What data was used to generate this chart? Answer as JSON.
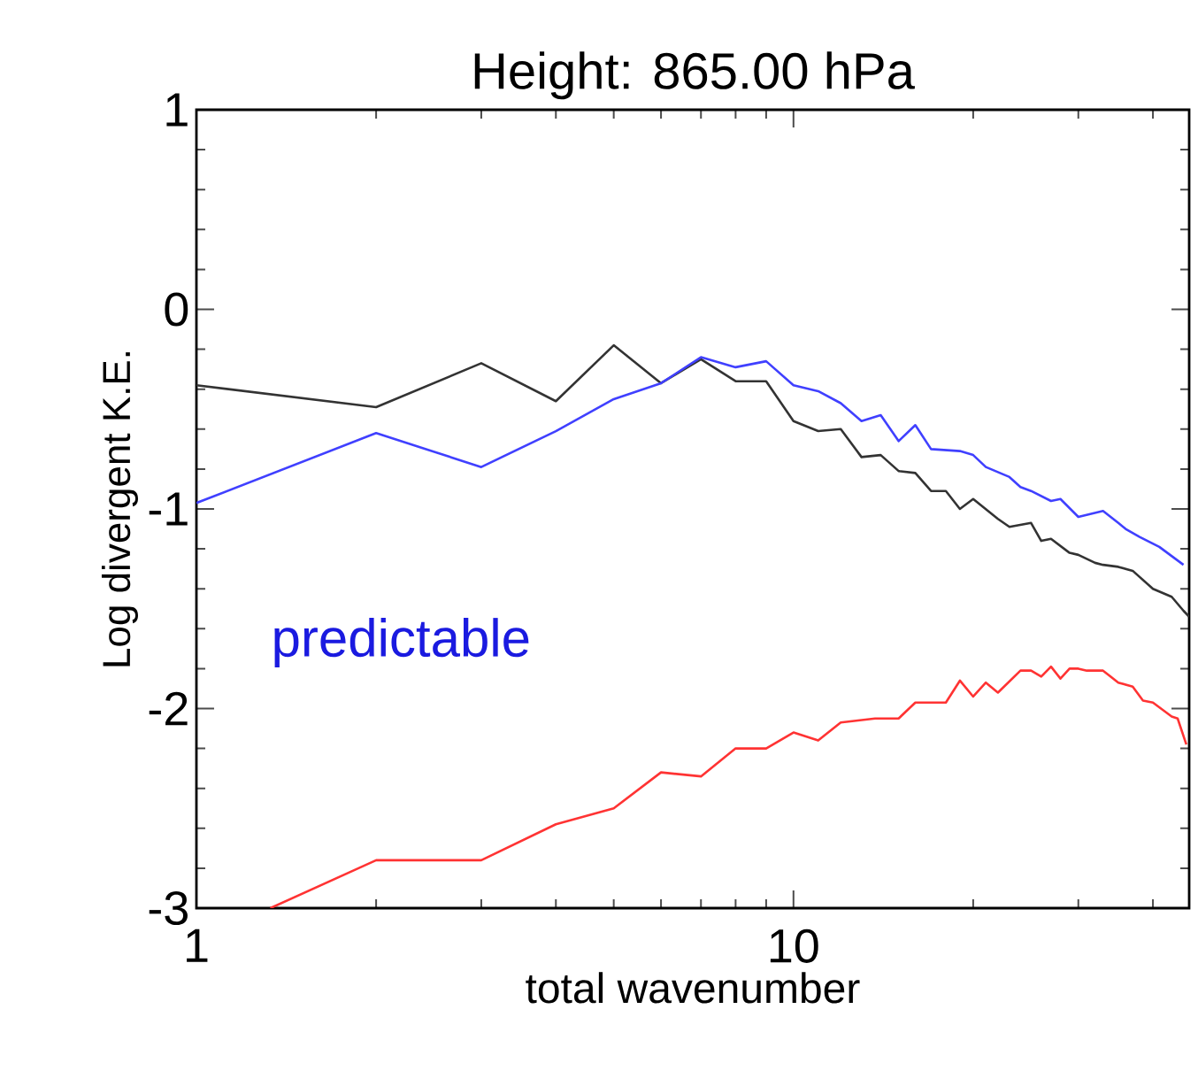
{
  "chart_data": {
    "type": "line",
    "title": "Height: 865.00 hPa",
    "xlabel": "total wavenumber",
    "ylabel": "Log divergent K.E.",
    "log": "x",
    "xlim": [
      1,
      46
    ],
    "xticks": [
      1,
      {
        "value": 2,
        "label": null
      },
      {
        "value": 3,
        "label": null
      },
      {
        "value": 4,
        "label": null
      },
      {
        "value": 5,
        "label": null
      },
      {
        "value": 6,
        "label": null
      },
      {
        "value": 7,
        "label": null
      },
      {
        "value": 8,
        "label": null
      },
      {
        "value": 9,
        "label": null
      },
      10,
      {
        "value": 20,
        "label": null
      },
      {
        "value": 30,
        "label": null
      },
      {
        "value": 40,
        "label": null
      }
    ],
    "ylim": [
      -3,
      1
    ],
    "yticks": [
      -3,
      -2,
      -1,
      0,
      1
    ],
    "annotations": [
      "predictable"
    ],
    "series": [
      {
        "color": "#333333",
        "x": [
          1,
          2,
          3,
          4,
          5,
          6,
          7,
          8,
          9,
          10,
          11,
          12,
          13,
          14,
          15,
          16,
          17,
          18,
          19,
          20,
          22,
          23,
          25,
          26,
          27,
          29,
          30,
          32,
          33,
          35,
          37,
          40,
          43,
          45,
          46
        ],
        "values": [
          -0.38,
          -0.49,
          -0.27,
          -0.46,
          -0.18,
          -0.37,
          -0.25,
          -0.36,
          -0.36,
          -0.56,
          -0.61,
          -0.6,
          -0.74,
          -0.73,
          -0.81,
          -0.82,
          -0.91,
          -0.91,
          -1.0,
          -0.95,
          -1.05,
          -1.09,
          -1.07,
          -1.16,
          -1.15,
          -1.22,
          -1.23,
          -1.27,
          -1.28,
          -1.29,
          -1.31,
          -1.4,
          -1.44,
          -1.51,
          -1.54
        ]
      },
      {
        "color": "#4040ff",
        "x": [
          1,
          2,
          3,
          4,
          5,
          6,
          7,
          8,
          9,
          10,
          11,
          12,
          13,
          14,
          15,
          16,
          17,
          19,
          20,
          21,
          23,
          24,
          25,
          27,
          28,
          30,
          33,
          35,
          36,
          38,
          41,
          45
        ],
        "values": [
          -0.97,
          -0.62,
          -0.79,
          -0.61,
          -0.45,
          -0.37,
          -0.24,
          -0.29,
          -0.26,
          -0.38,
          -0.41,
          -0.47,
          -0.56,
          -0.53,
          -0.66,
          -0.58,
          -0.7,
          -0.71,
          -0.73,
          -0.79,
          -0.84,
          -0.89,
          -0.91,
          -0.96,
          -0.95,
          -1.04,
          -1.01,
          -1.07,
          -1.1,
          -1.14,
          -1.19,
          -1.28
        ]
      },
      {
        "color": "#ff3333",
        "x": [
          1.33,
          2,
          3,
          4,
          5,
          6,
          7,
          8,
          9,
          10,
          11,
          12,
          13.7,
          15,
          16,
          18,
          19,
          20,
          21,
          22,
          24,
          25,
          26,
          27,
          28,
          29,
          30,
          31,
          33,
          35,
          37,
          38.5,
          40,
          43,
          44,
          45.5
        ],
        "values": [
          -3.0,
          -2.76,
          -2.76,
          -2.58,
          -2.5,
          -2.32,
          -2.34,
          -2.2,
          -2.2,
          -2.12,
          -2.16,
          -2.07,
          -2.05,
          -2.05,
          -1.97,
          -1.97,
          -1.86,
          -1.94,
          -1.87,
          -1.92,
          -1.81,
          -1.81,
          -1.84,
          -1.79,
          -1.85,
          -1.8,
          -1.8,
          -1.81,
          -1.81,
          -1.87,
          -1.89,
          -1.96,
          -1.97,
          -2.04,
          -2.05,
          -2.18
        ]
      }
    ]
  }
}
